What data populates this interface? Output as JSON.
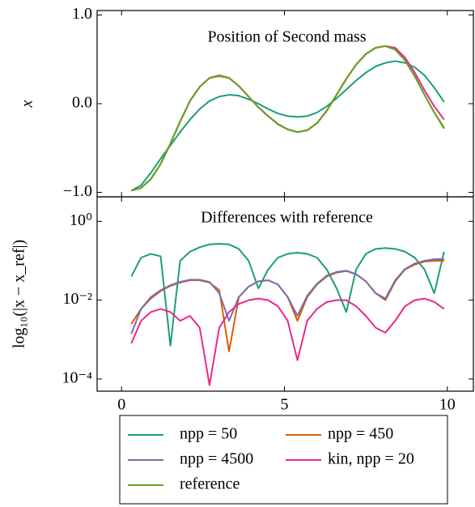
{
  "chart_data": [
    {
      "type": "line",
      "title": "Position of Second mass",
      "ylabel": "x",
      "x": [
        0.3,
        0.6,
        0.9,
        1.2,
        1.5,
        1.8,
        2.1,
        2.4,
        2.7,
        3.0,
        3.3,
        3.6,
        3.9,
        4.2,
        4.5,
        4.8,
        5.1,
        5.4,
        5.7,
        6.0,
        6.3,
        6.6,
        6.9,
        7.2,
        7.5,
        7.8,
        8.1,
        8.4,
        8.7,
        9.0,
        9.3,
        9.6,
        9.9
      ],
      "xlim": [
        -0.75,
        10.8
      ],
      "xticks": [
        0,
        5,
        10
      ],
      "ylim": [
        -1.05,
        1.05
      ],
      "yticks": [
        {
          "value": -1,
          "label": "−1.0"
        },
        {
          "value": 0,
          "label": "0.0"
        },
        {
          "value": 1,
          "label": "1.0"
        }
      ],
      "series": [
        {
          "name": "npp = 50",
          "color": "#1b9e77",
          "values": [
            -0.98,
            -0.92,
            -0.78,
            -0.62,
            -0.47,
            -0.32,
            -0.18,
            -0.06,
            0.03,
            0.08,
            0.1,
            0.09,
            0.05,
            0,
            -0.06,
            -0.11,
            -0.14,
            -0.15,
            -0.14,
            -0.1,
            -0.03,
            0.06,
            0.16,
            0.26,
            0.35,
            0.42,
            0.46,
            0.48,
            0.46,
            0.41,
            0.32,
            0.18,
            0.02
          ]
        },
        {
          "name": "npp = 450",
          "color": "#d95f02",
          "values": [
            -0.98,
            -0.95,
            -0.85,
            -0.68,
            -0.45,
            -0.2,
            0.03,
            0.19,
            0.29,
            0.31,
            0.29,
            0.2,
            0.08,
            -0.04,
            -0.14,
            -0.23,
            -0.29,
            -0.32,
            -0.3,
            -0.22,
            -0.08,
            0.1,
            0.28,
            0.44,
            0.56,
            0.63,
            0.65,
            0.61,
            0.49,
            0.31,
            0.1,
            -0.1,
            -0.27
          ]
        },
        {
          "name": "npp = 4500",
          "color": "#7570b3",
          "values": [
            -0.98,
            -0.95,
            -0.85,
            -0.68,
            -0.45,
            -0.2,
            0.03,
            0.19,
            0.29,
            0.32,
            0.29,
            0.2,
            0.08,
            -0.04,
            -0.14,
            -0.23,
            -0.29,
            -0.32,
            -0.3,
            -0.22,
            -0.08,
            0.1,
            0.28,
            0.44,
            0.56,
            0.63,
            0.65,
            0.61,
            0.49,
            0.31,
            0.1,
            -0.1,
            -0.28
          ]
        },
        {
          "name": "kin, npp = 20",
          "color": "#e7298a",
          "values": [
            -0.98,
            -0.95,
            -0.85,
            -0.68,
            -0.45,
            -0.2,
            0.03,
            0.19,
            0.29,
            0.32,
            0.29,
            0.2,
            0.08,
            -0.04,
            -0.14,
            -0.23,
            -0.29,
            -0.32,
            -0.3,
            -0.22,
            -0.08,
            0.1,
            0.28,
            0.44,
            0.56,
            0.63,
            0.65,
            0.63,
            0.52,
            0.35,
            0.15,
            -0.03,
            -0.18
          ]
        },
        {
          "name": "reference",
          "color": "#66a61e",
          "values": [
            -0.98,
            -0.95,
            -0.85,
            -0.68,
            -0.45,
            -0.2,
            0.03,
            0.19,
            0.29,
            0.32,
            0.29,
            0.2,
            0.08,
            -0.04,
            -0.14,
            -0.23,
            -0.29,
            -0.32,
            -0.3,
            -0.22,
            -0.08,
            0.1,
            0.28,
            0.44,
            0.56,
            0.63,
            0.65,
            0.61,
            0.49,
            0.31,
            0.1,
            -0.1,
            -0.28
          ]
        }
      ]
    },
    {
      "type": "line",
      "title": "Differences with reference",
      "ylabel": "log₁₀(|x − x_ref|)",
      "log_y": true,
      "x": [
        0.3,
        0.6,
        0.9,
        1.2,
        1.5,
        1.8,
        2.1,
        2.4,
        2.7,
        3.0,
        3.3,
        3.6,
        3.9,
        4.2,
        4.5,
        4.8,
        5.1,
        5.4,
        5.7,
        6.0,
        6.3,
        6.6,
        6.9,
        7.2,
        7.5,
        7.8,
        8.1,
        8.4,
        8.7,
        9.0,
        9.3,
        9.6,
        9.9
      ],
      "xlim": [
        -0.75,
        10.8
      ],
      "xticks": [
        0,
        5,
        10
      ],
      "ylim": [
        4.9e-05,
        4.2
      ],
      "yticks": [
        {
          "value": 0.0001,
          "label": "10⁻⁴"
        },
        {
          "value": 0.01,
          "label": "10⁻²"
        },
        {
          "value": 1,
          "label": "10⁰"
        }
      ],
      "series": [
        {
          "color": "#1b9e77",
          "values": [
            0.04,
            0.12,
            0.15,
            0.13,
            0.0007,
            0.1,
            0.17,
            0.22,
            0.26,
            0.27,
            0.26,
            0.2,
            0.1,
            0.02,
            0.06,
            0.12,
            0.15,
            0.16,
            0.15,
            0.12,
            0.06,
            0.02,
            0.005,
            0.06,
            0.15,
            0.2,
            0.21,
            0.2,
            0.17,
            0.12,
            0.06,
            0.015,
            0.17
          ]
        },
        {
          "color": "#d95f02",
          "values": [
            0.0025,
            0.006,
            0.011,
            0.017,
            0.023,
            0.028,
            0.032,
            0.032,
            0.028,
            0.018,
            0.0005,
            0.012,
            0.022,
            0.03,
            0.032,
            0.025,
            0.012,
            0.003,
            0.012,
            0.025,
            0.04,
            0.05,
            0.055,
            0.045,
            0.03,
            0.015,
            0.01,
            0.03,
            0.06,
            0.08,
            0.095,
            0.1,
            0.1
          ]
        },
        {
          "color": "#7570b3",
          "values": [
            0.0014,
            0.006,
            0.012,
            0.018,
            0.024,
            0.029,
            0.033,
            0.033,
            0.029,
            0.015,
            0.003,
            0.012,
            0.022,
            0.03,
            0.032,
            0.025,
            0.012,
            0.004,
            0.013,
            0.026,
            0.042,
            0.052,
            0.056,
            0.046,
            0.03,
            0.015,
            0.011,
            0.032,
            0.062,
            0.085,
            0.1,
            0.11,
            0.11
          ]
        },
        {
          "color": "#e7298a",
          "values": [
            0.0008,
            0.003,
            0.005,
            0.006,
            0.005,
            0.003,
            0.004,
            0.002,
            7e-05,
            0.002,
            0.005,
            0.008,
            0.01,
            0.011,
            0.01,
            0.007,
            0.003,
            0.0003,
            0.003,
            0.006,
            0.009,
            0.01,
            0.01,
            0.007,
            0.004,
            0.002,
            0.0015,
            0.003,
            0.007,
            0.01,
            0.011,
            0.009,
            0.006
          ]
        }
      ]
    }
  ]
}
